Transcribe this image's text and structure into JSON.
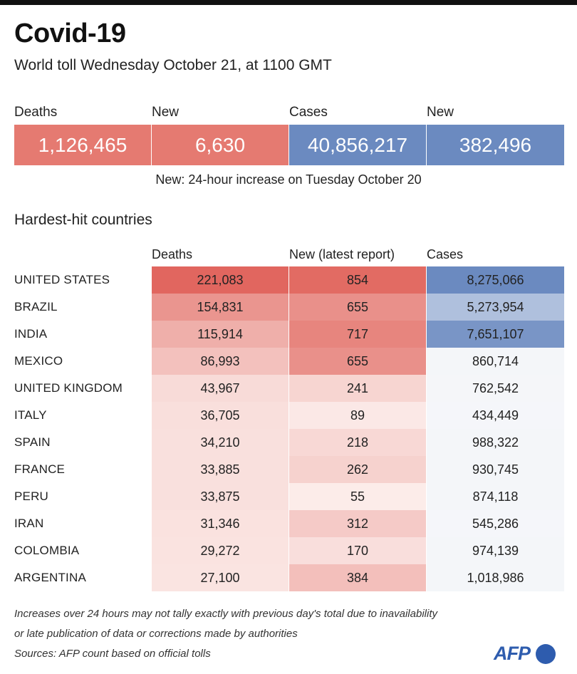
{
  "header": {
    "title": "Covid-19",
    "subtitle": "World toll Wednesday October 21, at 1100 GMT"
  },
  "summary": {
    "labels": [
      "Deaths",
      "New",
      "Cases",
      "New"
    ],
    "values": [
      "1,126,465",
      "6,630",
      "40,856,217",
      "382,496"
    ],
    "colors": [
      "#e57a71",
      "#e57a71",
      "#6b8ac0",
      "#6b8ac0"
    ],
    "note": "New: 24-hour increase on Tuesday October 20"
  },
  "section_title": "Hardest-hit countries",
  "colors": {
    "deaths_accent": "#e0625a",
    "cases_accent": "#6b8ac0",
    "cases_light": "#eef1f7"
  },
  "chart_data": {
    "type": "table",
    "title": "Hardest-hit countries",
    "columns": [
      "Deaths",
      "New (latest report)",
      "Cases"
    ],
    "rows": [
      {
        "country": "UNITED STATES",
        "deaths": 221083,
        "new": 854,
        "cases": 8275066,
        "deaths_text": "221,083",
        "new_text": "854",
        "cases_text": "8,275,066"
      },
      {
        "country": "BRAZIL",
        "deaths": 154831,
        "new": 655,
        "cases": 5273954,
        "deaths_text": "154,831",
        "new_text": "655",
        "cases_text": "5,273,954"
      },
      {
        "country": "INDIA",
        "deaths": 115914,
        "new": 717,
        "cases": 7651107,
        "deaths_text": "115,914",
        "new_text": "717",
        "cases_text": "7,651,107"
      },
      {
        "country": "MEXICO",
        "deaths": 86993,
        "new": 655,
        "cases": 860714,
        "deaths_text": "86,993",
        "new_text": "655",
        "cases_text": "860,714"
      },
      {
        "country": "UNITED KINGDOM",
        "deaths": 43967,
        "new": 241,
        "cases": 762542,
        "deaths_text": "43,967",
        "new_text": "241",
        "cases_text": "762,542"
      },
      {
        "country": "ITALY",
        "deaths": 36705,
        "new": 89,
        "cases": 434449,
        "deaths_text": "36,705",
        "new_text": "89",
        "cases_text": "434,449"
      },
      {
        "country": "SPAIN",
        "deaths": 34210,
        "new": 218,
        "cases": 988322,
        "deaths_text": "34,210",
        "new_text": "218",
        "cases_text": "988,322"
      },
      {
        "country": "FRANCE",
        "deaths": 33885,
        "new": 262,
        "cases": 930745,
        "deaths_text": "33,885",
        "new_text": "262",
        "cases_text": "930,745"
      },
      {
        "country": "PERU",
        "deaths": 33875,
        "new": 55,
        "cases": 874118,
        "deaths_text": "33,875",
        "new_text": "55",
        "cases_text": "874,118"
      },
      {
        "country": "IRAN",
        "deaths": 31346,
        "new": 312,
        "cases": 545286,
        "deaths_text": "31,346",
        "new_text": "312",
        "cases_text": "545,286"
      },
      {
        "country": "COLOMBIA",
        "deaths": 29272,
        "new": 170,
        "cases": 974139,
        "deaths_text": "29,272",
        "new_text": "170",
        "cases_text": "974,139"
      },
      {
        "country": "ARGENTINA",
        "deaths": 27100,
        "new": 384,
        "cases": 1018986,
        "deaths_text": "27,100",
        "new_text": "384",
        "cases_text": "1,018,986"
      }
    ]
  },
  "footnotes": [
    "Increases over 24 hours may not tally exactly with previous day's total due to inavailability",
    "or late publication of data or corrections made by authorities",
    "Sources: AFP count based on official tolls"
  ],
  "logo_text": "AFP"
}
